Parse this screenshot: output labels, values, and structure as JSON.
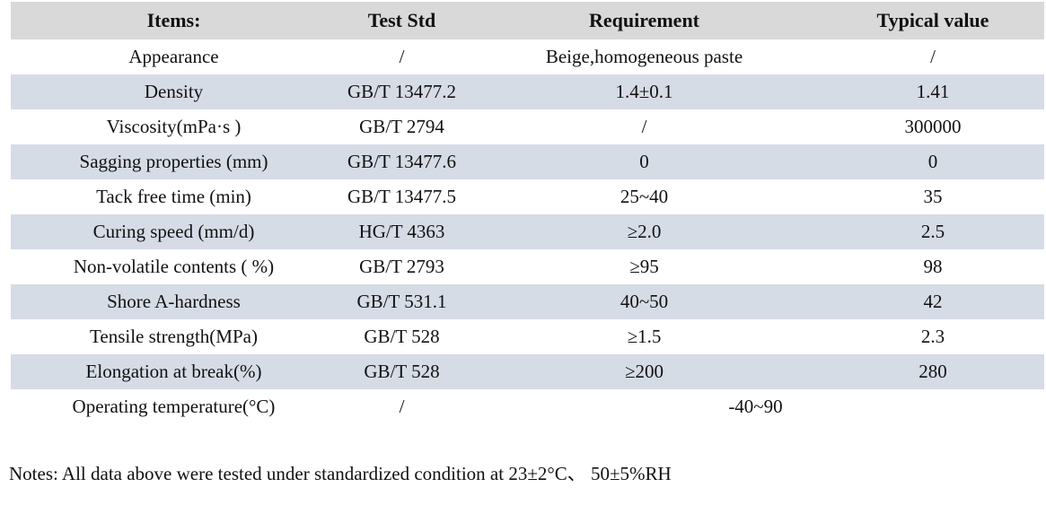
{
  "colors": {
    "header_bg": "#d9d9d9",
    "alt_row_bg": "#d6dce6",
    "text": "#111111",
    "page_bg": "#ffffff"
  },
  "table": {
    "headers": {
      "items": "Items:",
      "test_std": "Test Std",
      "requirement": "Requirement",
      "typical_value": "Typical value"
    },
    "rows": [
      {
        "item": "Appearance",
        "test_std": "/",
        "requirement": "Beige,homogeneous paste",
        "typical_value": "/"
      },
      {
        "item": "Density",
        "test_std": "GB/T 13477.2",
        "requirement": "1.4±0.1",
        "typical_value": "1.41"
      },
      {
        "item": "Viscosity(mPa·s )",
        "test_std": "GB/T 2794",
        "requirement": "/",
        "typical_value": "300000"
      },
      {
        "item": "Sagging properties (mm)",
        "test_std": "GB/T 13477.6",
        "requirement": "0",
        "typical_value": "0"
      },
      {
        "item": "Tack free time (min)",
        "test_std": "GB/T 13477.5",
        "requirement": "25~40",
        "typical_value": "35"
      },
      {
        "item": "Curing speed (mm/d)",
        "test_std": "HG/T 4363",
        "requirement": "≥2.0",
        "typical_value": "2.5"
      },
      {
        "item": "Non-volatile contents ( %)",
        "test_std": "GB/T 2793",
        "requirement": "≥95",
        "typical_value": "98"
      },
      {
        "item": "Shore A-hardness",
        "test_std": "GB/T 531.1",
        "requirement": "40~50",
        "typical_value": "42"
      },
      {
        "item": "Tensile strength(MPa)",
        "test_std": "GB/T 528",
        "requirement": "≥1.5",
        "typical_value": "2.3"
      },
      {
        "item": "Elongation at break(%)",
        "test_std": "GB/T 528",
        "requirement": "≥200",
        "typical_value": "280"
      },
      {
        "item": "Operating temperature(°C)",
        "test_std": "/",
        "requirement": "-40~90"
      }
    ]
  },
  "notes": "Notes: All data above were tested under standardized condition at 23±2°C、 50±5%RH"
}
